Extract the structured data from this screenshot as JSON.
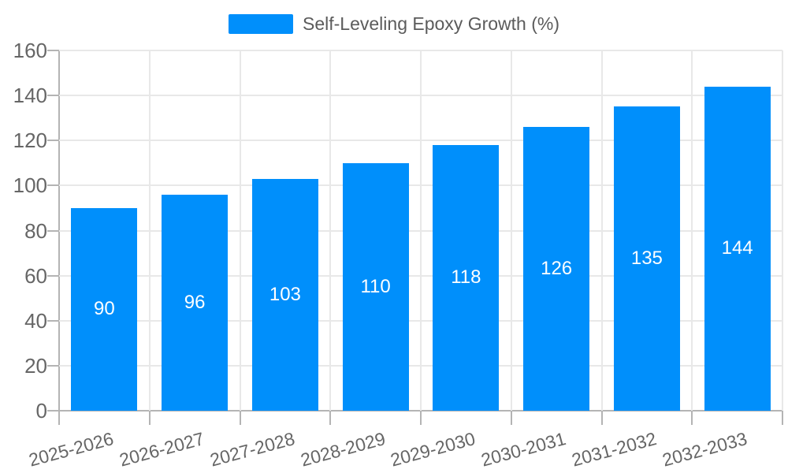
{
  "chart_data": {
    "type": "bar",
    "title": "",
    "legend": {
      "position": "top",
      "label": "Self-Leveling Epoxy Growth (%)"
    },
    "categories": [
      "2025-2026",
      "2026-2027",
      "2027-2028",
      "2028-2029",
      "2029-2030",
      "2030-2031",
      "2031-2032",
      "2032-2033"
    ],
    "series": [
      {
        "name": "Self-Leveling Epoxy Growth (%)",
        "values": [
          90,
          96,
          103,
          110,
          118,
          126,
          135,
          144
        ]
      }
    ],
    "value_labels_shown": true,
    "xlabel": "",
    "ylabel": "",
    "ylim": [
      0,
      160
    ],
    "yticks": [
      0,
      20,
      40,
      60,
      80,
      100,
      120,
      140,
      160
    ],
    "grid": true,
    "x_label_rotation_deg": -15,
    "colors": {
      "bar": "#008FFB",
      "value_label": "#FFFFFF",
      "axis_text": "#666666",
      "legend_text": "#5B5B5B",
      "gridline": "#E8E8E8",
      "axis_line": "#B4B4B4",
      "background": "#FFFFFF"
    }
  }
}
